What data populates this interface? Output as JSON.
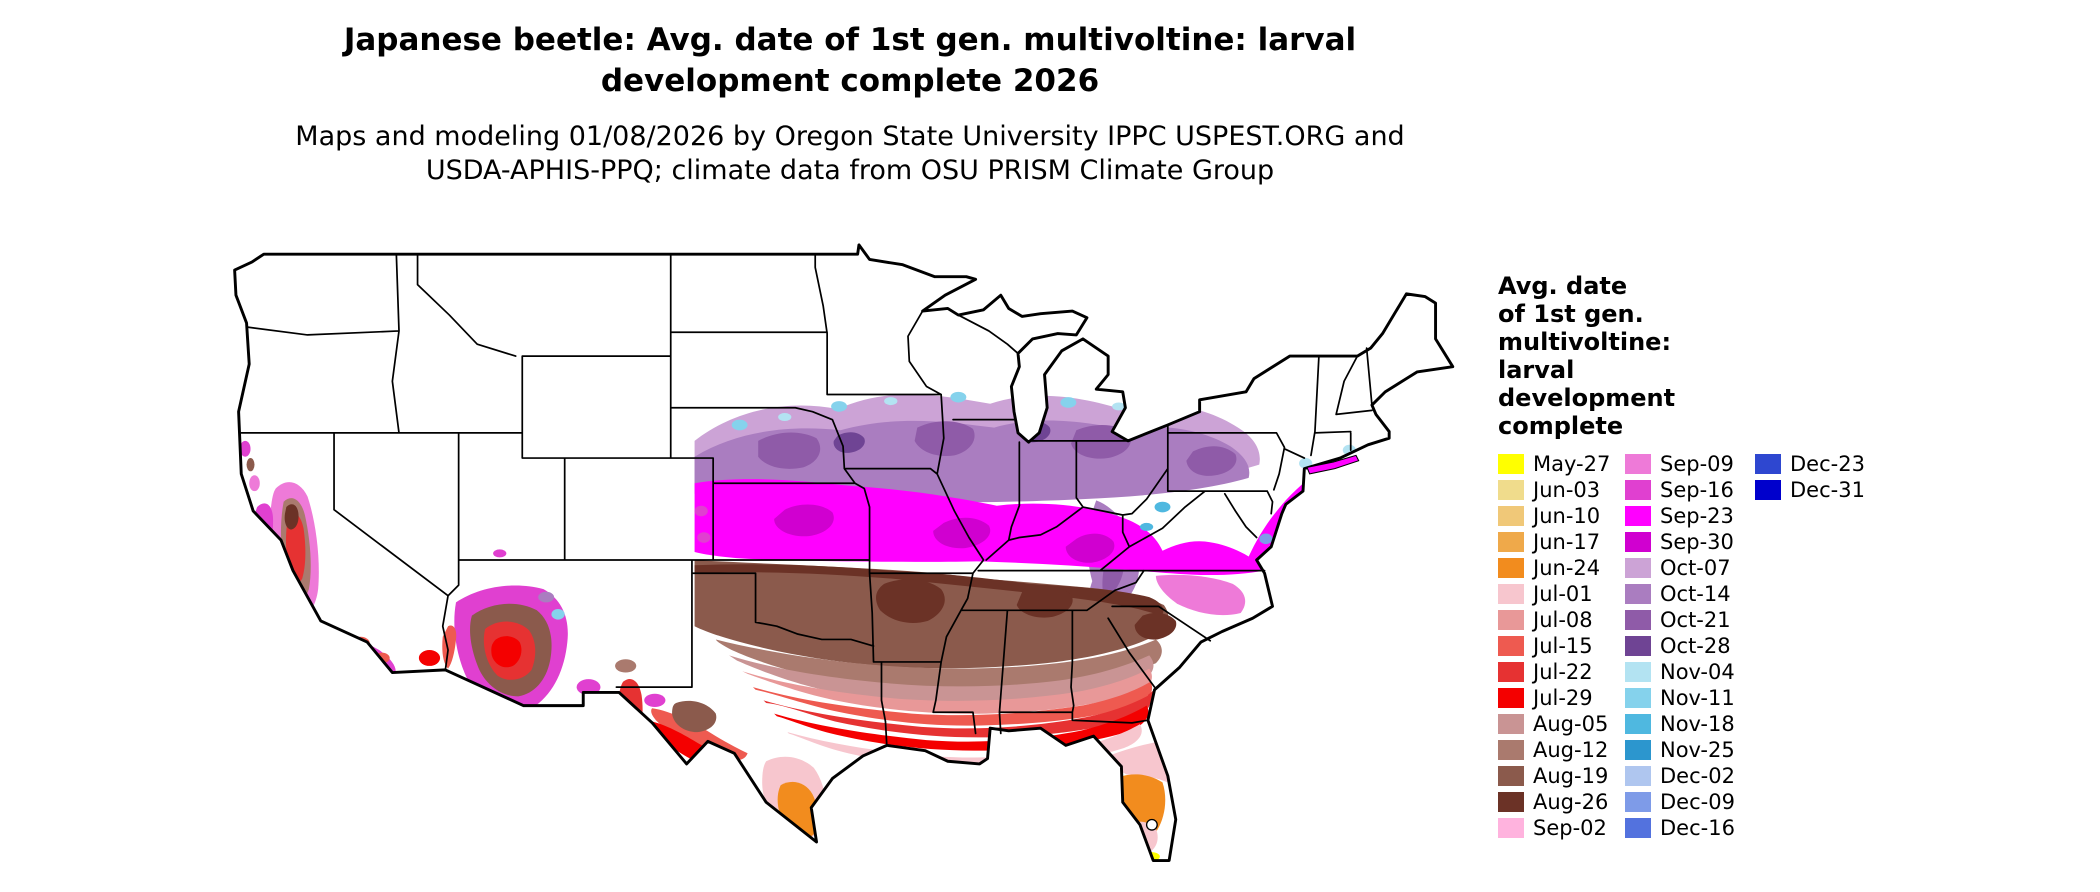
{
  "title": {
    "line1": "Japanese beetle: Avg. date of 1st gen. multivoltine: larval",
    "line2": "development complete 2026"
  },
  "subtitle": {
    "line1": "Maps and modeling 01/08/2026 by Oregon State University IPPC USPEST.ORG and",
    "line2": "USDA-APHIS-PPQ; climate data from OSU PRISM Climate Group"
  },
  "legend": {
    "title_lines": [
      "Avg. date",
      "of 1st gen.",
      "multivoltine:",
      "larval",
      "development",
      "complete"
    ],
    "columns": [
      {
        "entries": [
          {
            "label": "May-27",
            "color": "#FFFF00"
          },
          {
            "label": "Jun-03",
            "color": "#F0DC8C"
          },
          {
            "label": "Jun-10",
            "color": "#F0C878"
          },
          {
            "label": "Jun-17",
            "color": "#EFA94A"
          },
          {
            "label": "Jun-24",
            "color": "#F28C1E"
          },
          {
            "label": "Jul-01",
            "color": "#F7C6CE"
          },
          {
            "label": "Jul-08",
            "color": "#E89898"
          },
          {
            "label": "Jul-15",
            "color": "#EE5A50"
          },
          {
            "label": "Jul-22",
            "color": "#E63232"
          },
          {
            "label": "Jul-29",
            "color": "#F40000"
          },
          {
            "label": "Aug-05",
            "color": "#C99494"
          },
          {
            "label": "Aug-12",
            "color": "#AA7A6E"
          },
          {
            "label": "Aug-19",
            "color": "#8B5A4C"
          },
          {
            "label": "Aug-26",
            "color": "#6B3226"
          },
          {
            "label": "Sep-02",
            "color": "#FFB3DE"
          }
        ]
      },
      {
        "entries": [
          {
            "label": "Sep-09",
            "color": "#EE7AD8"
          },
          {
            "label": "Sep-16",
            "color": "#E040D0"
          },
          {
            "label": "Sep-23",
            "color": "#FF00FF"
          },
          {
            "label": "Sep-30",
            "color": "#D000D0"
          },
          {
            "label": "Oct-07",
            "color": "#CCA3D6"
          },
          {
            "label": "Oct-14",
            "color": "#AA7DC0"
          },
          {
            "label": "Oct-21",
            "color": "#8F5BA8"
          },
          {
            "label": "Oct-28",
            "color": "#6F4494"
          },
          {
            "label": "Nov-04",
            "color": "#B3E3F2"
          },
          {
            "label": "Nov-11",
            "color": "#85D2EC"
          },
          {
            "label": "Nov-18",
            "color": "#4FB8E0"
          },
          {
            "label": "Nov-25",
            "color": "#2C96CE"
          },
          {
            "label": "Dec-02",
            "color": "#AFC6EF"
          },
          {
            "label": "Dec-09",
            "color": "#7E9BE8"
          },
          {
            "label": "Dec-16",
            "color": "#5372DE"
          }
        ]
      },
      {
        "entries": [
          {
            "label": "Dec-23",
            "color": "#2E47D0"
          },
          {
            "label": "Dec-31",
            "color": "#0000CC"
          }
        ]
      }
    ]
  },
  "map": {
    "region": "Contiguous United States",
    "measure": "Avg. date of 1st gen. multivoltine: larval development complete",
    "year": "2026"
  }
}
